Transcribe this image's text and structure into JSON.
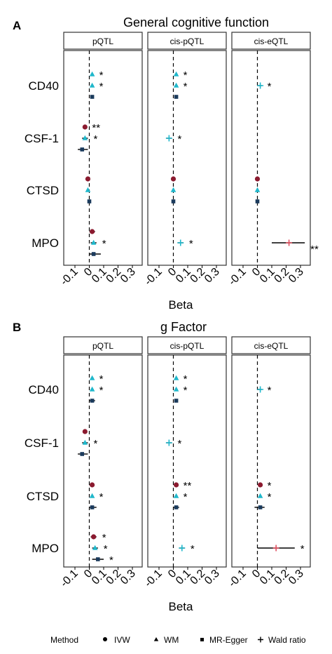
{
  "figure": {
    "colors": {
      "ivw": "#8b1a2f",
      "wm": "#1fb8cc",
      "egger": "#1a3a5c",
      "wald": "#e05060",
      "ci": "#000000",
      "strip_border": "#333333",
      "zero_line": "#000000"
    },
    "legend": {
      "title": "Method",
      "items": [
        {
          "label": "IVW",
          "shape": "circle"
        },
        {
          "label": "WM",
          "shape": "triangle"
        },
        {
          "label": "MR-Egger",
          "shape": "square"
        },
        {
          "label": "Wald ratio",
          "shape": "plus"
        }
      ]
    }
  },
  "chart_data": [
    {
      "type": "scatter",
      "panel_label": "A",
      "title": "General cognitive function",
      "xlabel": "Beta",
      "xlim": [
        -0.1,
        0.3
      ],
      "xticks": [
        "-0.1",
        "0",
        "0.1",
        "0.2",
        "0.3"
      ],
      "facets": [
        "pQTL",
        "cis-pQTL",
        "cis-eQTL"
      ],
      "categories": [
        "CD40",
        "CSF-1",
        "CTSD",
        "MPO"
      ],
      "series": [
        {
          "facet": "pQTL",
          "category": "CD40",
          "method": "WM",
          "estimate": 0.02,
          "ci": [
            0.01,
            0.03
          ],
          "sig": "*"
        },
        {
          "facet": "pQTL",
          "category": "CD40",
          "method": "WM",
          "estimate": 0.02,
          "ci": [
            0.01,
            0.03
          ],
          "sig": "*"
        },
        {
          "facet": "pQTL",
          "category": "CD40",
          "method": "MR-Egger",
          "estimate": 0.02,
          "ci": [
            0.01,
            0.03
          ],
          "sig": ""
        },
        {
          "facet": "pQTL",
          "category": "CSF-1",
          "method": "IVW",
          "estimate": -0.03,
          "ci": [
            -0.04,
            -0.02
          ],
          "sig": "**"
        },
        {
          "facet": "pQTL",
          "category": "CSF-1",
          "method": "WM",
          "estimate": -0.03,
          "ci": [
            -0.05,
            -0.01
          ],
          "sig": "*"
        },
        {
          "facet": "pQTL",
          "category": "CSF-1",
          "method": "MR-Egger",
          "estimate": -0.05,
          "ci": [
            -0.08,
            -0.01
          ],
          "sig": ""
        },
        {
          "facet": "pQTL",
          "category": "CTSD",
          "method": "IVW",
          "estimate": -0.01,
          "ci": [
            -0.02,
            0.0
          ],
          "sig": ""
        },
        {
          "facet": "pQTL",
          "category": "CTSD",
          "method": "WM",
          "estimate": -0.01,
          "ci": [
            -0.02,
            0.0
          ],
          "sig": ""
        },
        {
          "facet": "pQTL",
          "category": "CTSD",
          "method": "MR-Egger",
          "estimate": 0.0,
          "ci": [
            -0.01,
            0.01
          ],
          "sig": ""
        },
        {
          "facet": "pQTL",
          "category": "MPO",
          "method": "IVW",
          "estimate": 0.02,
          "ci": [
            0.0,
            0.04
          ],
          "sig": ""
        },
        {
          "facet": "pQTL",
          "category": "MPO",
          "method": "WM",
          "estimate": 0.03,
          "ci": [
            0.01,
            0.05
          ],
          "sig": "*"
        },
        {
          "facet": "pQTL",
          "category": "MPO",
          "method": "MR-Egger",
          "estimate": 0.03,
          "ci": [
            0.0,
            0.08
          ],
          "sig": ""
        },
        {
          "facet": "cis-pQTL",
          "category": "CD40",
          "method": "WM",
          "estimate": 0.02,
          "ci": [
            0.01,
            0.03
          ],
          "sig": "*"
        },
        {
          "facet": "cis-pQTL",
          "category": "CD40",
          "method": "WM",
          "estimate": 0.02,
          "ci": [
            0.01,
            0.03
          ],
          "sig": "*"
        },
        {
          "facet": "cis-pQTL",
          "category": "CD40",
          "method": "MR-Egger",
          "estimate": 0.02,
          "ci": [
            0.01,
            0.03
          ],
          "sig": ""
        },
        {
          "facet": "cis-pQTL",
          "category": "CSF-1",
          "method": "Wald ratio",
          "estimate": -0.03,
          "ci": [
            -0.05,
            -0.01
          ],
          "sig": "*"
        },
        {
          "facet": "cis-pQTL",
          "category": "CTSD",
          "method": "IVW",
          "estimate": 0.0,
          "ci": [
            -0.01,
            0.01
          ],
          "sig": ""
        },
        {
          "facet": "cis-pQTL",
          "category": "CTSD",
          "method": "WM",
          "estimate": 0.0,
          "ci": [
            -0.01,
            0.01
          ],
          "sig": ""
        },
        {
          "facet": "cis-pQTL",
          "category": "CTSD",
          "method": "MR-Egger",
          "estimate": 0.0,
          "ci": [
            -0.01,
            0.01
          ],
          "sig": ""
        },
        {
          "facet": "cis-pQTL",
          "category": "MPO",
          "method": "Wald ratio",
          "estimate": 0.05,
          "ci": [
            0.03,
            0.07
          ],
          "sig": "*"
        },
        {
          "facet": "cis-eQTL",
          "category": "CD40",
          "method": "Wald ratio",
          "estimate": 0.02,
          "ci": [
            0.0,
            0.03
          ],
          "sig": "*"
        },
        {
          "facet": "cis-eQTL",
          "category": "CTSD",
          "method": "IVW",
          "estimate": 0.0,
          "ci": [
            -0.01,
            0.01
          ],
          "sig": ""
        },
        {
          "facet": "cis-eQTL",
          "category": "CTSD",
          "method": "WM",
          "estimate": 0.0,
          "ci": [
            -0.01,
            0.01
          ],
          "sig": ""
        },
        {
          "facet": "cis-eQTL",
          "category": "CTSD",
          "method": "MR-Egger",
          "estimate": 0.0,
          "ci": [
            -0.01,
            0.01
          ],
          "sig": ""
        },
        {
          "facet": "cis-eQTL",
          "category": "MPO",
          "method": "Wald ratio",
          "estimate": 0.22,
          "ci": [
            0.1,
            0.33
          ],
          "sig": "**"
        }
      ]
    },
    {
      "type": "scatter",
      "panel_label": "B",
      "title": "g Factor",
      "xlabel": "Beta",
      "xlim": [
        -0.1,
        0.3
      ],
      "xticks": [
        "-0.1",
        "0",
        "0.1",
        "0.2",
        "0.3"
      ],
      "facets": [
        "pQTL",
        "cis-pQTL",
        "cis-eQTL"
      ],
      "categories": [
        "CD40",
        "CSF-1",
        "CTSD",
        "MPO"
      ],
      "series": [
        {
          "facet": "pQTL",
          "category": "CD40",
          "method": "WM",
          "estimate": 0.02,
          "ci": [
            0.01,
            0.03
          ],
          "sig": "*"
        },
        {
          "facet": "pQTL",
          "category": "CD40",
          "method": "WM",
          "estimate": 0.02,
          "ci": [
            0.01,
            0.03
          ],
          "sig": "*"
        },
        {
          "facet": "pQTL",
          "category": "CD40",
          "method": "MR-Egger",
          "estimate": 0.02,
          "ci": [
            0.0,
            0.04
          ],
          "sig": ""
        },
        {
          "facet": "pQTL",
          "category": "CSF-1",
          "method": "IVW",
          "estimate": -0.03,
          "ci": [
            -0.04,
            -0.02
          ],
          "sig": ""
        },
        {
          "facet": "pQTL",
          "category": "CSF-1",
          "method": "WM",
          "estimate": -0.03,
          "ci": [
            -0.05,
            -0.01
          ],
          "sig": "*"
        },
        {
          "facet": "pQTL",
          "category": "CSF-1",
          "method": "MR-Egger",
          "estimate": -0.05,
          "ci": [
            -0.08,
            -0.01
          ],
          "sig": ""
        },
        {
          "facet": "pQTL",
          "category": "CTSD",
          "method": "IVW",
          "estimate": 0.02,
          "ci": [
            0.0,
            0.03
          ],
          "sig": ""
        },
        {
          "facet": "pQTL",
          "category": "CTSD",
          "method": "WM",
          "estimate": 0.02,
          "ci": [
            0.01,
            0.03
          ],
          "sig": "*"
        },
        {
          "facet": "pQTL",
          "category": "CTSD",
          "method": "MR-Egger",
          "estimate": 0.02,
          "ci": [
            0.0,
            0.05
          ],
          "sig": ""
        },
        {
          "facet": "pQTL",
          "category": "MPO",
          "method": "IVW",
          "estimate": 0.03,
          "ci": [
            0.01,
            0.05
          ],
          "sig": "*"
        },
        {
          "facet": "pQTL",
          "category": "MPO",
          "method": "WM",
          "estimate": 0.04,
          "ci": [
            0.02,
            0.06
          ],
          "sig": "*"
        },
        {
          "facet": "pQTL",
          "category": "MPO",
          "method": "MR-Egger",
          "estimate": 0.06,
          "ci": [
            0.02,
            0.1
          ],
          "sig": "*"
        },
        {
          "facet": "cis-pQTL",
          "category": "CD40",
          "method": "WM",
          "estimate": 0.02,
          "ci": [
            0.01,
            0.03
          ],
          "sig": "*"
        },
        {
          "facet": "cis-pQTL",
          "category": "CD40",
          "method": "WM",
          "estimate": 0.02,
          "ci": [
            0.01,
            0.03
          ],
          "sig": "*"
        },
        {
          "facet": "cis-pQTL",
          "category": "CD40",
          "method": "MR-Egger",
          "estimate": 0.02,
          "ci": [
            0.01,
            0.03
          ],
          "sig": ""
        },
        {
          "facet": "cis-pQTL",
          "category": "CSF-1",
          "method": "Wald ratio",
          "estimate": -0.03,
          "ci": [
            -0.05,
            -0.01
          ],
          "sig": "*"
        },
        {
          "facet": "cis-pQTL",
          "category": "CTSD",
          "method": "IVW",
          "estimate": 0.02,
          "ci": [
            0.01,
            0.03
          ],
          "sig": "**"
        },
        {
          "facet": "cis-pQTL",
          "category": "CTSD",
          "method": "WM",
          "estimate": 0.02,
          "ci": [
            0.01,
            0.03
          ],
          "sig": "*"
        },
        {
          "facet": "cis-pQTL",
          "category": "CTSD",
          "method": "MR-Egger",
          "estimate": 0.02,
          "ci": [
            0.0,
            0.04
          ],
          "sig": ""
        },
        {
          "facet": "cis-pQTL",
          "category": "MPO",
          "method": "Wald ratio",
          "estimate": 0.06,
          "ci": [
            0.04,
            0.08
          ],
          "sig": "*"
        },
        {
          "facet": "cis-eQTL",
          "category": "CD40",
          "method": "Wald ratio",
          "estimate": 0.02,
          "ci": [
            0.0,
            0.03
          ],
          "sig": "*"
        },
        {
          "facet": "cis-eQTL",
          "category": "CTSD",
          "method": "IVW",
          "estimate": 0.02,
          "ci": [
            0.01,
            0.03
          ],
          "sig": "*"
        },
        {
          "facet": "cis-eQTL",
          "category": "CTSD",
          "method": "WM",
          "estimate": 0.02,
          "ci": [
            0.01,
            0.03
          ],
          "sig": "*"
        },
        {
          "facet": "cis-eQTL",
          "category": "CTSD",
          "method": "MR-Egger",
          "estimate": 0.02,
          "ci": [
            -0.02,
            0.05
          ],
          "sig": ""
        },
        {
          "facet": "cis-eQTL",
          "category": "MPO",
          "method": "Wald ratio",
          "estimate": 0.13,
          "ci": [
            0.0,
            0.26
          ],
          "sig": "*"
        }
      ]
    }
  ]
}
